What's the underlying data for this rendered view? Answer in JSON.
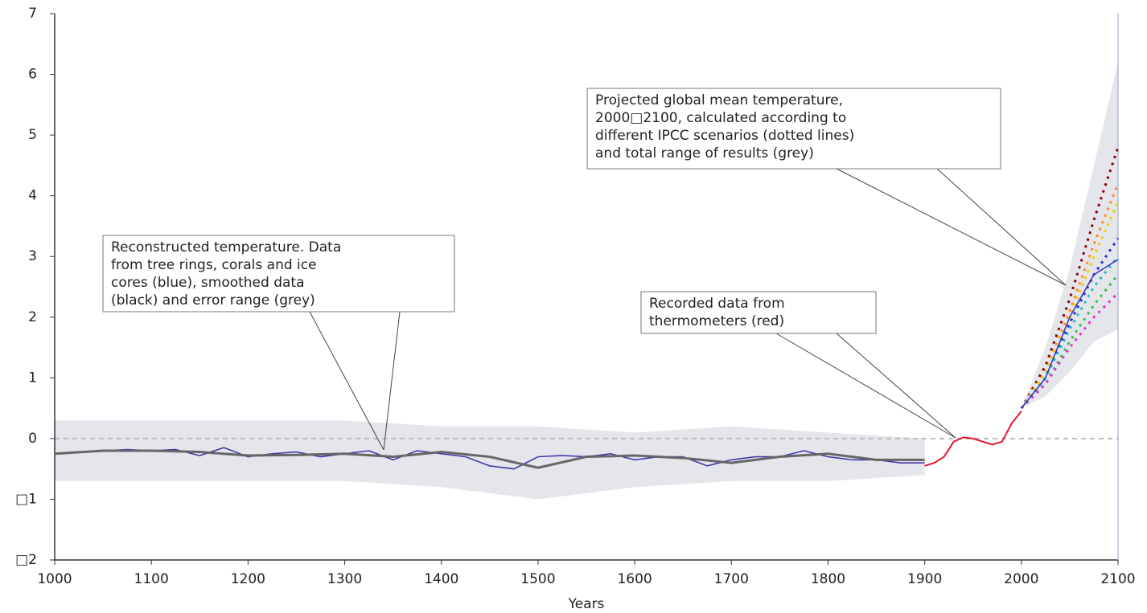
{
  "chart_data": {
    "type": "line",
    "x_label": "Years",
    "xlim": [
      1000,
      2100
    ],
    "xticks": [
      1000,
      1100,
      1200,
      1300,
      1400,
      1500,
      1600,
      1700,
      1800,
      1900,
      2000,
      2100
    ],
    "ylim": [
      -2,
      7
    ],
    "yticks": [
      {
        "value": -2,
        "label": "□2"
      },
      {
        "value": -1,
        "label": "□1"
      },
      0,
      1,
      2,
      3,
      4,
      5,
      6,
      7
    ],
    "reference_line": 0,
    "reference_color": "#bbbbbb",
    "ranges": [
      {
        "color": "#e4e6ec",
        "x": [
          1000,
          1100,
          1200,
          1300,
          1400,
          1500,
          1600,
          1700,
          1800,
          1900
        ],
        "upper": [
          0.3,
          0.3,
          0.3,
          0.3,
          0.2,
          0.2,
          0.1,
          0.2,
          0.1,
          0.0
        ],
        "lower": [
          -0.7,
          -0.7,
          -0.7,
          -0.7,
          -0.8,
          -1.0,
          -0.8,
          -0.7,
          -0.7,
          -0.6
        ]
      },
      {
        "color": "#e4e6ec",
        "x": [
          2000,
          2025,
          2050,
          2075,
          2100
        ],
        "upper": [
          0.5,
          1.5,
          2.8,
          4.5,
          6.2
        ],
        "lower": [
          0.5,
          0.7,
          1.1,
          1.6,
          1.8
        ]
      }
    ],
    "series": [
      {
        "color": "#3a2fa8",
        "dotted": false,
        "width": 1.5,
        "x": [
          1000,
          1025,
          1050,
          1075,
          1100,
          1125,
          1150,
          1175,
          1200,
          1225,
          1250,
          1275,
          1300,
          1325,
          1350,
          1375,
          1400,
          1425,
          1450,
          1475,
          1500,
          1525,
          1550,
          1575,
          1600,
          1625,
          1650,
          1675,
          1700,
          1725,
          1750,
          1775,
          1800,
          1825,
          1850,
          1875,
          1900
        ],
        "values": [
          -0.25,
          -0.22,
          -0.2,
          -0.18,
          -0.2,
          -0.18,
          -0.28,
          -0.15,
          -0.3,
          -0.25,
          -0.22,
          -0.3,
          -0.25,
          -0.2,
          -0.35,
          -0.2,
          -0.25,
          -0.3,
          -0.45,
          -0.5,
          -0.3,
          -0.28,
          -0.3,
          -0.25,
          -0.35,
          -0.3,
          -0.3,
          -0.45,
          -0.35,
          -0.3,
          -0.3,
          -0.2,
          -0.3,
          -0.35,
          -0.35,
          -0.4,
          -0.4
        ]
      },
      {
        "color": "#666666",
        "dotted": false,
        "width": 3,
        "x": [
          1000,
          1050,
          1100,
          1150,
          1200,
          1250,
          1300,
          1350,
          1400,
          1450,
          1500,
          1550,
          1600,
          1650,
          1700,
          1750,
          1800,
          1850,
          1900
        ],
        "values": [
          -0.25,
          -0.2,
          -0.2,
          -0.22,
          -0.28,
          -0.27,
          -0.25,
          -0.3,
          -0.22,
          -0.3,
          -0.48,
          -0.3,
          -0.28,
          -0.32,
          -0.4,
          -0.3,
          -0.25,
          -0.35,
          -0.35
        ]
      },
      {
        "color": "#e8152e",
        "dotted": false,
        "width": 2,
        "x": [
          1900,
          1910,
          1920,
          1930,
          1940,
          1950,
          1960,
          1970,
          1980,
          1990,
          2000
        ],
        "values": [
          -0.45,
          -0.4,
          -0.3,
          -0.05,
          0.02,
          0.0,
          -0.05,
          -0.1,
          -0.05,
          0.25,
          0.45
        ]
      },
      {
        "color": "#8b0000",
        "dotted": true,
        "width": 3,
        "x": [
          2000,
          2025,
          2050,
          2075,
          2100
        ],
        "values": [
          0.5,
          1.2,
          2.3,
          3.6,
          4.8
        ]
      },
      {
        "color": "#ff8c1a",
        "dotted": true,
        "width": 3,
        "x": [
          2000,
          2025,
          2050,
          2075,
          2100
        ],
        "values": [
          0.5,
          1.1,
          2.1,
          3.2,
          4.2
        ]
      },
      {
        "color": "#e8d000",
        "dotted": true,
        "width": 3,
        "x": [
          2000,
          2025,
          2050,
          2075,
          2100
        ],
        "values": [
          0.5,
          1.1,
          2.0,
          3.0,
          3.9
        ]
      },
      {
        "color": "#2a2ad0",
        "dotted": true,
        "width": 3,
        "x": [
          2000,
          2025,
          2050,
          2075,
          2100
        ],
        "values": [
          0.5,
          1.0,
          1.9,
          2.7,
          3.3
        ]
      },
      {
        "color": "#20c0c0",
        "dotted": true,
        "width": 3,
        "x": [
          2000,
          2025,
          2050,
          2075,
          2100
        ],
        "values": [
          0.5,
          1.0,
          1.8,
          2.5,
          3.0
        ]
      },
      {
        "color": "#30c040",
        "dotted": true,
        "width": 3,
        "x": [
          2000,
          2025,
          2050,
          2075,
          2100
        ],
        "values": [
          0.5,
          0.9,
          1.6,
          2.2,
          2.7
        ]
      },
      {
        "color": "#e030d0",
        "dotted": true,
        "width": 3,
        "x": [
          2000,
          2025,
          2050,
          2075,
          2100
        ],
        "values": [
          0.5,
          0.9,
          1.5,
          2.0,
          2.4
        ]
      },
      {
        "color": "#3030c0",
        "dotted": false,
        "width": 1.5,
        "x": [
          2000,
          2025,
          2050,
          2075,
          2100
        ],
        "values": [
          0.5,
          1.0,
          2.0,
          2.7,
          2.95
        ]
      }
    ],
    "annotations": [
      {
        "lines": [
          "Reconstructed temperature. Data",
          "from tree rings, corals and ice",
          "cores (blue), smoothed data",
          "(black) and error range (grey)"
        ]
      },
      {
        "lines": [
          "Recorded data from",
          "thermometers (red)"
        ]
      },
      {
        "lines": [
          "Projected global mean temperature,",
          "2000□2100, calculated according to",
          "different IPCC scenarios (dotted lines)",
          "and total range of results (grey)"
        ]
      }
    ]
  }
}
